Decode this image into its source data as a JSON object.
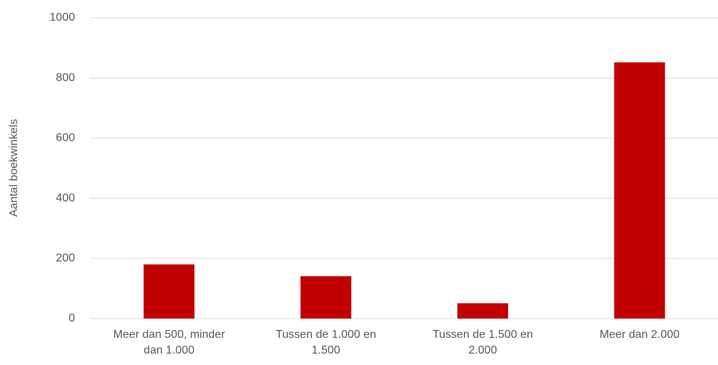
{
  "chart_data": {
    "type": "bar",
    "y_label": "Aantal boekwinkels",
    "categories": [
      "Meer dan 500, minder dan 1.000",
      "Tussen de 1.000 en 1.500",
      "Tussen de 1.500 en 2.000",
      "Meer dan 2.000"
    ],
    "values": [
      180,
      141,
      51,
      852
    ],
    "color": "#c00000",
    "ylim": [
      0,
      1000
    ],
    "yticks": [
      0,
      200,
      400,
      600,
      800,
      1000
    ],
    "grid": true
  }
}
